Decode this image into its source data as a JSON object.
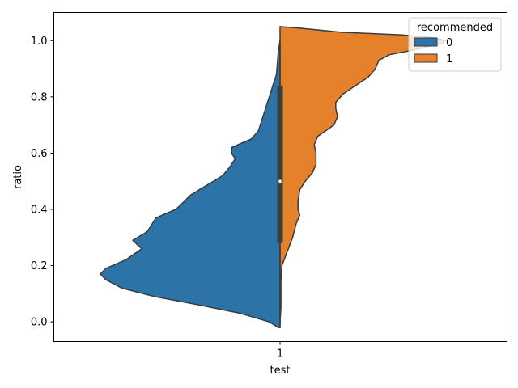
{
  "chart_data": {
    "type": "violin",
    "split": true,
    "xlabel": "test",
    "ylabel": "ratio",
    "categories": [
      "1"
    ],
    "ylim": [
      -0.07,
      1.1
    ],
    "yticks": [
      "0.0",
      "0.2",
      "0.4",
      "0.6",
      "0.8",
      "1.0"
    ],
    "legend": {
      "title": "recommended",
      "placement": "top-right",
      "entries": [
        "0",
        "1"
      ]
    },
    "colors": {
      "0": "#2c74a8",
      "1": "#e6812b",
      "outline": "#3a3a3a",
      "inner_box": "#3d3d3d",
      "median_dot": "#ffffff"
    },
    "inner_box": {
      "q1": 0.28,
      "median": 0.5,
      "q3": 0.84,
      "min": 0.0,
      "max": 1.0
    },
    "series": [
      {
        "name": "0",
        "side": "left",
        "density": [
          [
            -0.02,
            0.01
          ],
          [
            0.0,
            0.06
          ],
          [
            0.03,
            0.22
          ],
          [
            0.06,
            0.45
          ],
          [
            0.09,
            0.7
          ],
          [
            0.12,
            0.88
          ],
          [
            0.15,
            0.97
          ],
          [
            0.17,
            1.0
          ],
          [
            0.19,
            0.97
          ],
          [
            0.22,
            0.86
          ],
          [
            0.26,
            0.77
          ],
          [
            0.29,
            0.82
          ],
          [
            0.32,
            0.74
          ],
          [
            0.35,
            0.71
          ],
          [
            0.37,
            0.69
          ],
          [
            0.4,
            0.58
          ],
          [
            0.43,
            0.53
          ],
          [
            0.45,
            0.5
          ],
          [
            0.47,
            0.45
          ],
          [
            0.5,
            0.37
          ],
          [
            0.52,
            0.32
          ],
          [
            0.55,
            0.28
          ],
          [
            0.58,
            0.25
          ],
          [
            0.6,
            0.27
          ],
          [
            0.62,
            0.27
          ],
          [
            0.65,
            0.16
          ],
          [
            0.68,
            0.12
          ],
          [
            0.72,
            0.1
          ],
          [
            0.76,
            0.08
          ],
          [
            0.8,
            0.06
          ],
          [
            0.84,
            0.04
          ],
          [
            0.88,
            0.02
          ],
          [
            0.92,
            0.015
          ],
          [
            0.96,
            0.01
          ],
          [
            1.0,
            0.0
          ]
        ]
      },
      {
        "name": "1",
        "side": "right",
        "density": [
          [
            -0.02,
            0.0
          ],
          [
            0.0,
            0.0
          ],
          [
            0.05,
            0.005
          ],
          [
            0.1,
            0.005
          ],
          [
            0.15,
            0.005
          ],
          [
            0.2,
            0.01
          ],
          [
            0.25,
            0.04
          ],
          [
            0.3,
            0.07
          ],
          [
            0.35,
            0.09
          ],
          [
            0.38,
            0.11
          ],
          [
            0.4,
            0.1
          ],
          [
            0.43,
            0.1
          ],
          [
            0.47,
            0.11
          ],
          [
            0.5,
            0.14
          ],
          [
            0.53,
            0.18
          ],
          [
            0.56,
            0.2
          ],
          [
            0.6,
            0.2
          ],
          [
            0.63,
            0.19
          ],
          [
            0.66,
            0.21
          ],
          [
            0.7,
            0.3
          ],
          [
            0.73,
            0.32
          ],
          [
            0.76,
            0.31
          ],
          [
            0.78,
            0.31
          ],
          [
            0.81,
            0.35
          ],
          [
            0.84,
            0.42
          ],
          [
            0.87,
            0.49
          ],
          [
            0.9,
            0.53
          ],
          [
            0.93,
            0.55
          ],
          [
            0.95,
            0.61
          ],
          [
            0.97,
            0.77
          ],
          [
            0.99,
            0.9
          ],
          [
            1.0,
            0.92
          ],
          [
            1.01,
            0.86
          ],
          [
            1.02,
            0.68
          ],
          [
            1.03,
            0.34
          ],
          [
            1.045,
            0.1
          ],
          [
            1.05,
            0.0
          ]
        ]
      }
    ]
  }
}
